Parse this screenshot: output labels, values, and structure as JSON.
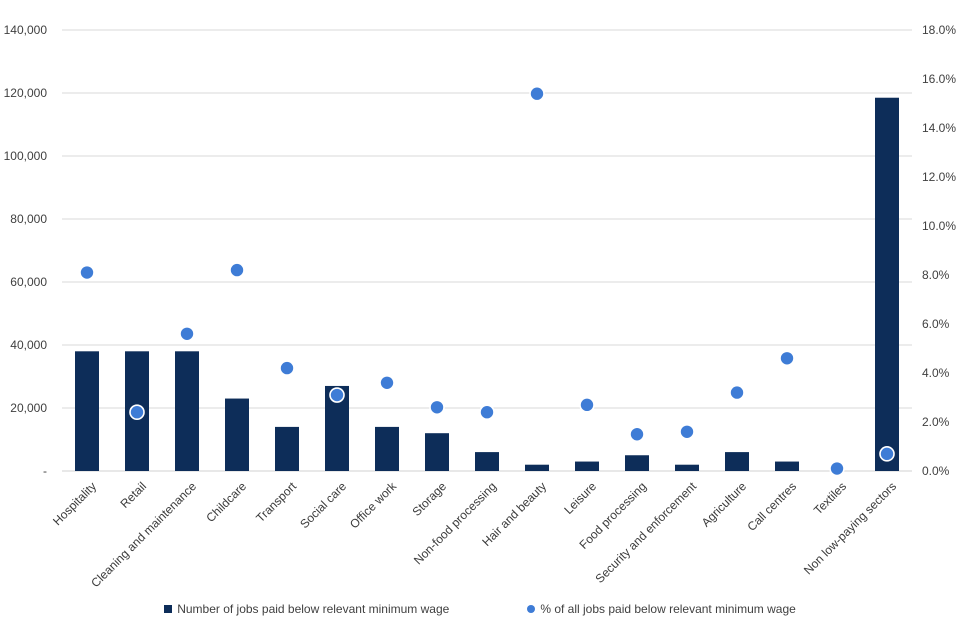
{
  "colors": {
    "bar": "#0d2d59",
    "dot": "#3e7cd6",
    "dot_ring": "#ffffff",
    "gridline": "#d9d9d9",
    "axis_line": "#d0d0d0",
    "tick_text": "#404040",
    "category_text": "#3a3a3a"
  },
  "legend": {
    "bars_label": "Number of jobs paid below relevant minimum wage",
    "dots_label": "% of all jobs paid below relevant minimum wage"
  },
  "chart_data": {
    "type": "bar",
    "subtype": "combo-bar-scatter-dual-axis",
    "title": "",
    "xlabel": "",
    "ylabel_left": "",
    "ylabel_right": "",
    "grid": true,
    "legend_position": "bottom",
    "categories": [
      "Hospitality",
      "Retail",
      "Cleaning and maintenance",
      "Childcare",
      "Transport",
      "Social care",
      "Office work",
      "Storage",
      "Non-food processing",
      "Hair and beauty",
      "Leisure",
      "Food processing",
      "Security and enforcement",
      "Agriculture",
      "Call centres",
      "Textiles",
      "Non low-paying sectors"
    ],
    "series": [
      {
        "name": "Number of jobs paid below relevant minimum wage",
        "type": "bar",
        "axis": "left",
        "values": [
          38000,
          38000,
          38000,
          23000,
          14000,
          27000,
          14000,
          12000,
          6000,
          2000,
          3000,
          5000,
          2000,
          6000,
          3000,
          0,
          118500
        ]
      },
      {
        "name": "% of all jobs paid below relevant minimum wage",
        "type": "scatter",
        "axis": "right",
        "values": [
          8.1,
          2.4,
          5.6,
          8.2,
          4.2,
          3.1,
          3.6,
          2.6,
          2.4,
          15.4,
          2.7,
          1.5,
          1.6,
          3.2,
          4.6,
          0.1,
          0.7
        ]
      }
    ],
    "left_axis": {
      "min": 0,
      "max": 140000,
      "step": 20000,
      "tick_labels": [
        "140,000",
        "120,000",
        "100,000",
        "80,000",
        "60,000",
        "40,000",
        "20,000",
        "-"
      ]
    },
    "right_axis": {
      "min": 0,
      "max": 18,
      "step": 2,
      "tick_labels": [
        "18.0%",
        "16.0%",
        "14.0%",
        "12.0%",
        "10.0%",
        "8.0%",
        "6.0%",
        "4.0%",
        "2.0%",
        "0.0%"
      ]
    }
  }
}
